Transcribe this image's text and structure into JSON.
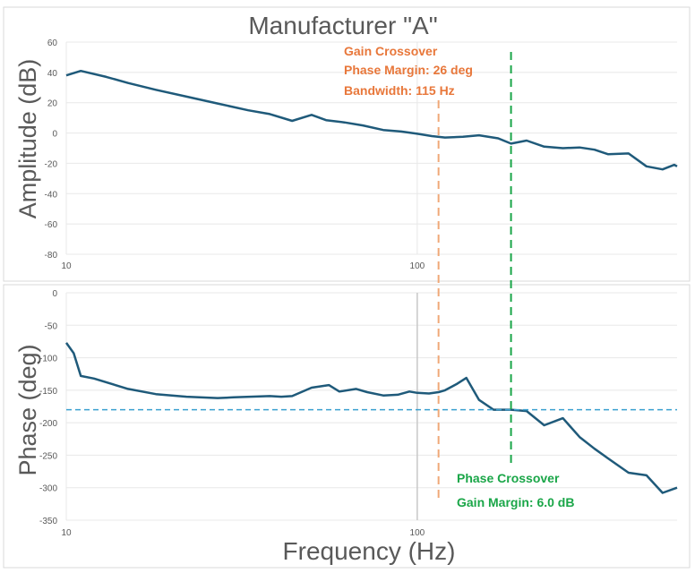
{
  "chart_data": {
    "type": "line",
    "title": "Manufacturer \"A\"",
    "xlabel": "Frequency (Hz)",
    "x_scale": "log",
    "xlim": [
      10,
      550
    ],
    "x_tick_labels": [
      "10",
      "100"
    ],
    "colors": {
      "series": "#1f5a7a",
      "gain_crossover": "#f0a878",
      "phase_crossover": "#1aa648",
      "ref_line": "#3aa0d0",
      "annotation_orange": "#e8773a",
      "annotation_green": "#1aa648",
      "grid": "#e8e8e8",
      "text": "#595959"
    },
    "panels": [
      {
        "name": "amplitude",
        "ylabel": "Amplitude (dB)",
        "ylim": [
          -80,
          60
        ],
        "y_ticks": [
          60,
          40,
          20,
          0,
          -20,
          -40,
          -60,
          -80
        ],
        "series": [
          {
            "name": "Amplitude",
            "x": [
              10,
              11,
              13,
              15,
              18,
              22,
              27,
              33,
              38,
              44,
              50,
              55,
              62,
              70,
              80,
              90,
              100,
              110,
              120,
              135,
              150,
              170,
              185,
              205,
              230,
              260,
              290,
              320,
              350,
              400,
              450,
              500,
              540,
              550
            ],
            "y": [
              38,
              41,
              37,
              33,
              28.5,
              24,
              19.5,
              15,
              12.5,
              8,
              12,
              8.5,
              7,
              5,
              2,
              1,
              -0.5,
              -2,
              -3,
              -2.5,
              -1.5,
              -3.5,
              -7,
              -5,
              -9,
              -10,
              -9.5,
              -11,
              -14,
              -13.5,
              -22,
              -24,
              -21,
              -22
            ]
          }
        ],
        "annotations": [
          {
            "lines": [
              "Gain Crossover",
              "Phase Margin: 26 deg",
              "Bandwidth: 115 Hz"
            ]
          }
        ]
      },
      {
        "name": "phase",
        "ylabel": "Phase (deg)",
        "ylim": [
          -350,
          0
        ],
        "y_ticks": [
          0,
          -50,
          -100,
          -150,
          -200,
          -250,
          -300,
          -350
        ],
        "series": [
          {
            "name": "Phase",
            "x": [
              10,
              10.5,
              11,
              12,
              15,
              18,
              22,
              27,
              30,
              38,
              41,
              44,
              50,
              56,
              60,
              67,
              72,
              80,
              88,
              95,
              100,
              108,
              115,
              120,
              130,
              138,
              150,
              165,
              185,
              205,
              230,
              260,
              290,
              320,
              350,
              400,
              450,
              500,
              550
            ],
            "y": [
              -77,
              -93,
              -128,
              -132,
              -148,
              -156,
              -160,
              -162,
              -161,
              -159,
              -160,
              -159,
              -146,
              -142,
              -152,
              -148,
              -153,
              -158,
              -157,
              -152,
              -154,
              -155,
              -153,
              -150,
              -140,
              -131,
              -165,
              -180,
              -180,
              -182,
              -204,
              -193,
              -222,
              -240,
              -255,
              -277,
              -281,
              -308,
              -300
            ]
          }
        ],
        "reference_line_y": -180,
        "annotations": [
          {
            "lines": [
              "Phase Crossover",
              "Gain Margin: 6.0 dB"
            ]
          }
        ]
      }
    ],
    "markers": [
      {
        "name": "gain-crossover",
        "x": 115
      },
      {
        "name": "phase-crossover",
        "x": 185
      }
    ]
  }
}
